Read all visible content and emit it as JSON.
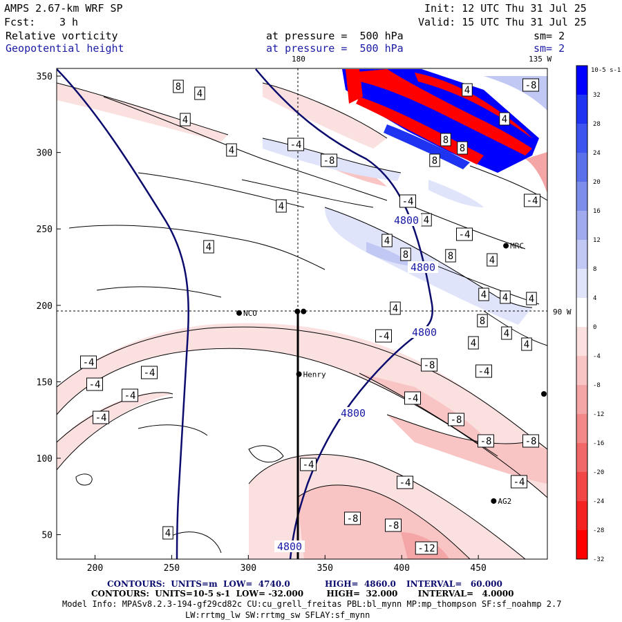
{
  "header": {
    "model": "AMPS 2.67-km WRF SP",
    "init": "Init: 12 UTC Thu 31 Jul 25",
    "fcst_label": "Fcst:",
    "fcst_value": "3 h",
    "valid": "Valid: 15 UTC Thu 31 Jul 25"
  },
  "fields": [
    {
      "name": "Relative vorticity",
      "pressure": "at pressure =  500 hPa",
      "sm": "sm= 2"
    },
    {
      "name": "Geopotential height",
      "pressure": "at pressure =  500 hPa",
      "sm": "sm= 2"
    }
  ],
  "map_labels": {
    "lon_180": "180",
    "lon_135w": "135 W",
    "lat_90w": "90 W",
    "stations": [
      "NCO",
      "Henry",
      "MRC",
      "AG2"
    ]
  },
  "chart_data": {
    "type": "contour",
    "x_ticks": [
      "200",
      "250",
      "300",
      "350",
      "400",
      "450"
    ],
    "y_ticks": [
      "350",
      "300",
      "250",
      "200",
      "150",
      "100",
      "50"
    ],
    "xlim": [
      175,
      495
    ],
    "ylim": [
      34,
      355
    ],
    "height_contour_label": "4800",
    "vorticity_labels": [
      "8",
      "4",
      "-4",
      "-8",
      "-12",
      "4",
      "8",
      "-4"
    ],
    "colorbar": {
      "unit": "10-5 s-1",
      "levels": [
        "32",
        "28",
        "24",
        "20",
        "16",
        "12",
        "8",
        "4",
        "0",
        "-4",
        "-8",
        "-12",
        "-16",
        "-20",
        "-24",
        "-28",
        "-32"
      ],
      "colors": [
        "#0000ff",
        "#1f33f2",
        "#3d55ee",
        "#5a70ea",
        "#7d8eea",
        "#9fabee",
        "#c1c8f4",
        "#e0e4fa",
        "#ffffff",
        "#fbe0e0",
        "#f8c4c4",
        "#f4a6a6",
        "#f28888",
        "#f06868",
        "#f24545",
        "#f52222",
        "#ff0000"
      ]
    },
    "stations": [
      {
        "name": "NCO",
        "x": 294,
        "y": 195
      },
      {
        "name": "Henry",
        "x": 333,
        "y": 155
      },
      {
        "name": "MRC",
        "x": 468,
        "y": 239
      },
      {
        "name": "AG2",
        "x": 460,
        "y": 72
      }
    ]
  },
  "footer": {
    "line1_a": "CONTOURS:  UNITS=m  LOW=  4740.0",
    "line1_b": "HIGH=  4860.0",
    "line1_c": "INTERVAL=   60.000",
    "line2": "CONTOURS:  UNITS=10-5 s-1  LOW= -32.000        HIGH=  32.000       INTERVAL=   4.0000",
    "line3": "Model Info: MPASv8.2.3-194-gf29cd82c CU:cu_grell_freitas PBL:bl_mynn MP:mp_thompson SF:sf_noahmp 2.7",
    "line4": "LW:rrtmg_lw SW:rrtmg_sw SFLAY:sf_mynn"
  }
}
